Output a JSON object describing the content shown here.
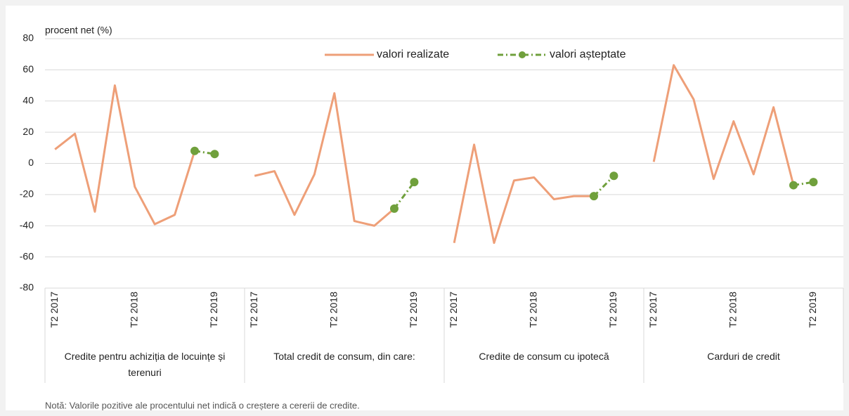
{
  "chart_data": {
    "type": "line",
    "y_label": "procent net (%)",
    "note": "Notă: Valorile pozitive ale procentului net indică o creștere a cererii de credite.",
    "groups": [
      "Credite pentru achiziția de locuințe și terenuri",
      "Total credit de consum, din care:",
      "Credite de consum cu ipotecă",
      "Carduri de credit"
    ],
    "categories": [
      "T2 2017",
      null,
      null,
      null,
      "T2 2018",
      null,
      null,
      null,
      "T2 2019",
      "T2 2017",
      null,
      null,
      null,
      "T2 2018",
      null,
      null,
      null,
      "T2 2019",
      "T2 2017",
      null,
      null,
      null,
      "T2 2018",
      null,
      null,
      null,
      "T2 2019",
      "T2 2017",
      null,
      null,
      null,
      "T2 2018",
      null,
      null,
      null,
      "T2 2019"
    ],
    "series": [
      {
        "name": "valori realizate",
        "color": "#ee9f78",
        "dashed": false,
        "markers": false,
        "values": [
          9,
          19,
          -31,
          50,
          -15,
          -39,
          -33,
          8,
          null,
          -8,
          -5,
          -33,
          -7,
          45,
          -37,
          -40,
          -29,
          null,
          -51,
          12,
          -51,
          -11,
          -9,
          -23,
          -21,
          -21,
          null,
          1,
          63,
          41,
          -10,
          27,
          -7,
          36,
          -14,
          null
        ]
      },
      {
        "name": "valori așteptate",
        "color": "#70a03c",
        "dashed": true,
        "markers": true,
        "values": [
          null,
          null,
          null,
          null,
          null,
          null,
          null,
          8,
          6,
          null,
          null,
          null,
          null,
          null,
          null,
          null,
          -29,
          -12,
          null,
          null,
          null,
          null,
          null,
          null,
          null,
          -21,
          -8,
          null,
          null,
          null,
          null,
          null,
          null,
          null,
          -14,
          -12
        ]
      }
    ],
    "ylim": [
      -80,
      80
    ],
    "yticks": [
      -80,
      -60,
      -40,
      -20,
      0,
      20,
      40,
      60,
      80
    ],
    "grid": true
  }
}
